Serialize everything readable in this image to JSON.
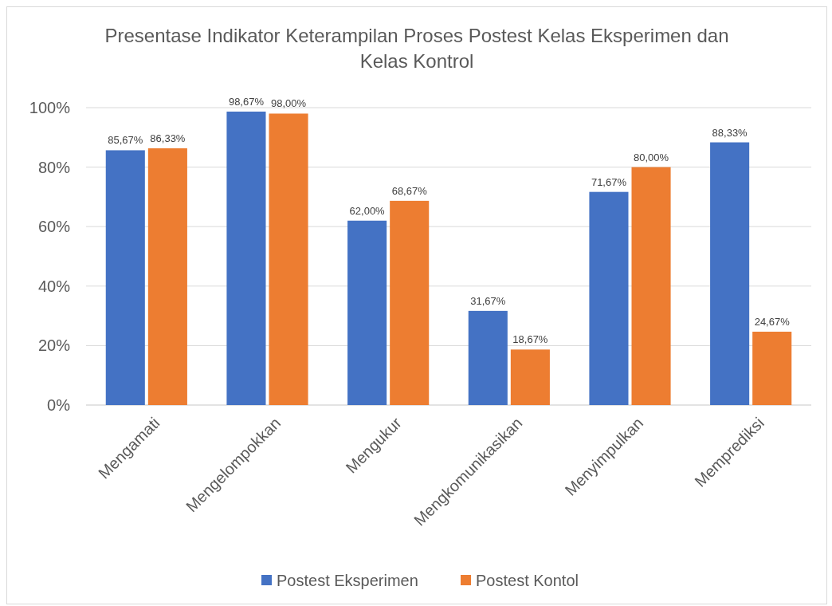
{
  "chart_data": {
    "type": "bar",
    "title": "Presentase Indikator Keterampilan Proses Postest Kelas Eksperimen dan Kelas Kontrol",
    "categories": [
      "Mengamati",
      "Mengelompokkan",
      "Mengukur",
      "Mengkomunikasikan",
      "Menyimpulkan",
      "Memprediksi"
    ],
    "series": [
      {
        "name": "Postest Eksperimen",
        "color": "#4472c4",
        "values": [
          85.67,
          98.67,
          62.0,
          31.67,
          71.67,
          88.33
        ],
        "value_labels": [
          "85,67%",
          "98,67%",
          "62,00%",
          "31,67%",
          "71,67%",
          "88,33%"
        ]
      },
      {
        "name": "Postest Kontol",
        "color": "#ed7d31",
        "values": [
          86.33,
          98.0,
          68.67,
          18.67,
          80.0,
          24.67
        ],
        "value_labels": [
          "86,33%",
          "98,00%",
          "68,67%",
          "18,67%",
          "80,00%",
          "24,67%"
        ]
      }
    ],
    "ylim": [
      0,
      100
    ],
    "yticks": [
      {
        "value": 0,
        "label": "0%"
      },
      {
        "value": 20,
        "label": "20%"
      },
      {
        "value": 40,
        "label": "40%"
      },
      {
        "value": 60,
        "label": "60%"
      },
      {
        "value": 80,
        "label": "80%"
      },
      {
        "value": 100,
        "label": "100%"
      }
    ],
    "grid": "y",
    "legend": "bottom"
  }
}
